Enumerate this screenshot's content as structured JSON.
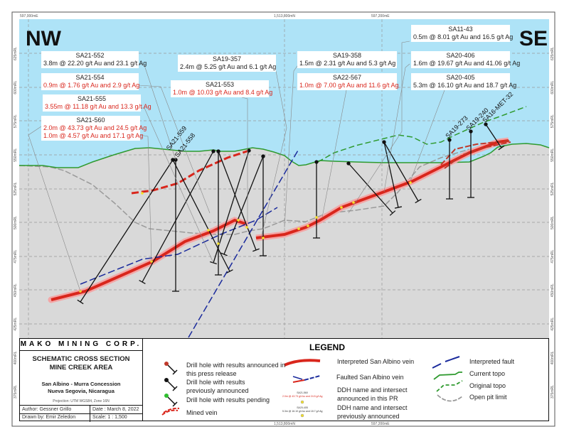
{
  "compass": {
    "left": "NW",
    "right": "SE"
  },
  "grid_labels": {
    "top": [
      "597,000mE",
      "1,513,800mN",
      "597,200mE"
    ],
    "bottom": [
      "1,513,800mN",
      "597,200mE"
    ],
    "elevations": [
      "625mRL",
      "600mRL",
      "575mRL",
      "550mRL",
      "525mRL",
      "500mRL",
      "475mRL",
      "450mRL",
      "425mRL",
      "400mRL",
      "375mRL"
    ]
  },
  "callouts": [
    {
      "name": "SA21-552",
      "lines": [
        "3.8m @ 22.20 g/t Au and 23.1 g/t Ag"
      ],
      "status": "previous"
    },
    {
      "name": "SA21-554",
      "lines": [
        "0.9m @ 1.76 g/t Au and 2.9 g/t Ag"
      ],
      "status": "new"
    },
    {
      "name": "SA21-555",
      "lines": [
        "3.55m @ 11.18 g/t Au and 13.3 g/t Ag"
      ],
      "status": "new"
    },
    {
      "name": "SA21-560",
      "lines": [
        "2.0m @ 43.73 g/t Au and 24.5 g/t Ag",
        "1.0m @ 4.57 g/t Au and 17.1 g/t Ag"
      ],
      "status": "new"
    },
    {
      "name": "SA19-357",
      "lines": [
        "2.4m @ 5.25 g/t Au and 6.1 g/t Ag"
      ],
      "status": "previous"
    },
    {
      "name": "SA21-553",
      "lines": [
        "1.0m @ 10.03 g/t Au and 8.4 g/t Ag"
      ],
      "status": "new"
    },
    {
      "name": "SA19-358",
      "lines": [
        "1.5m @ 2.31 g/t Au and 5.3 g/t Ag"
      ],
      "status": "previous"
    },
    {
      "name": "SA22-567",
      "lines": [
        "1.0m @ 7.00 g/t Au and 11.6 g/t Ag"
      ],
      "status": "new"
    },
    {
      "name": "SA11-43",
      "lines": [
        "0.5m @ 8.01 g/t Au and 16.5 g/t Ag"
      ],
      "status": "previous"
    },
    {
      "name": "SA20-406",
      "lines": [
        "1.6m @ 19.67 g/t Au and 41.06 g/t Ag"
      ],
      "status": "previous"
    },
    {
      "name": "SA20-405",
      "lines": [
        "5.3m @ 16.10 g/t Au and 18.7 g/t Ag"
      ],
      "status": "previous"
    }
  ],
  "hole_labels": [
    "SA21-559",
    "SA21-558",
    "SA19-273",
    "SA19-240",
    "SA16-MET-32"
  ],
  "title_block": {
    "company": "MAKO MINING CORP.",
    "title_1": "SCHEMATIC CROSS SECTION",
    "title_2": "MINE CREEK AREA",
    "location_1": "San Albino - Murra Concession",
    "location_2": "Nueva Segovia, Nicaragua",
    "projection": "Projection: UTM WGS84, Zone 16N",
    "author": "Author: Gessner Grillo",
    "date": "Date : March 8, 2022",
    "drawn_by": "Drawn by: Emir Zeledon",
    "scale": "Scale: 1 : 1,500"
  },
  "legend": {
    "title": "LEGEND",
    "items": {
      "drill_new": "Drill hole with results announced in this press release",
      "drill_prev": "Drill hole with results previously announced",
      "drill_pending": "Drill hole with results pending",
      "mined_vein": "Mined vein",
      "vein": "Interpreted San Albino vein",
      "faulted_vein": "Faulted San Albino vein",
      "ddh_new": "DDH name and intersect announced in this PR",
      "ddh_prev": "DDH name and intersect previously announced",
      "fault": "Interpreted fault",
      "current_topo": "Current topo",
      "original_topo": "Original topo",
      "pit": "Open pit limit"
    },
    "sample_new": {
      "name": "SA21-560",
      "line": "2.0m @ 43.73 g/t Au and 24.5 g/t Ag"
    },
    "sample_prev": {
      "name": "SA20-405",
      "line": "5.3m @ 16.10 g/t Au and 18.7 g/t Ag"
    }
  },
  "colors": {
    "sky": "#aee3f7",
    "ground": "#d9d9d9",
    "vein": "#d9261c",
    "fault": "#1a2a9c",
    "topo": "#2f9a2f",
    "pit": "#9a9a9a",
    "new_text": "#d9261c"
  }
}
